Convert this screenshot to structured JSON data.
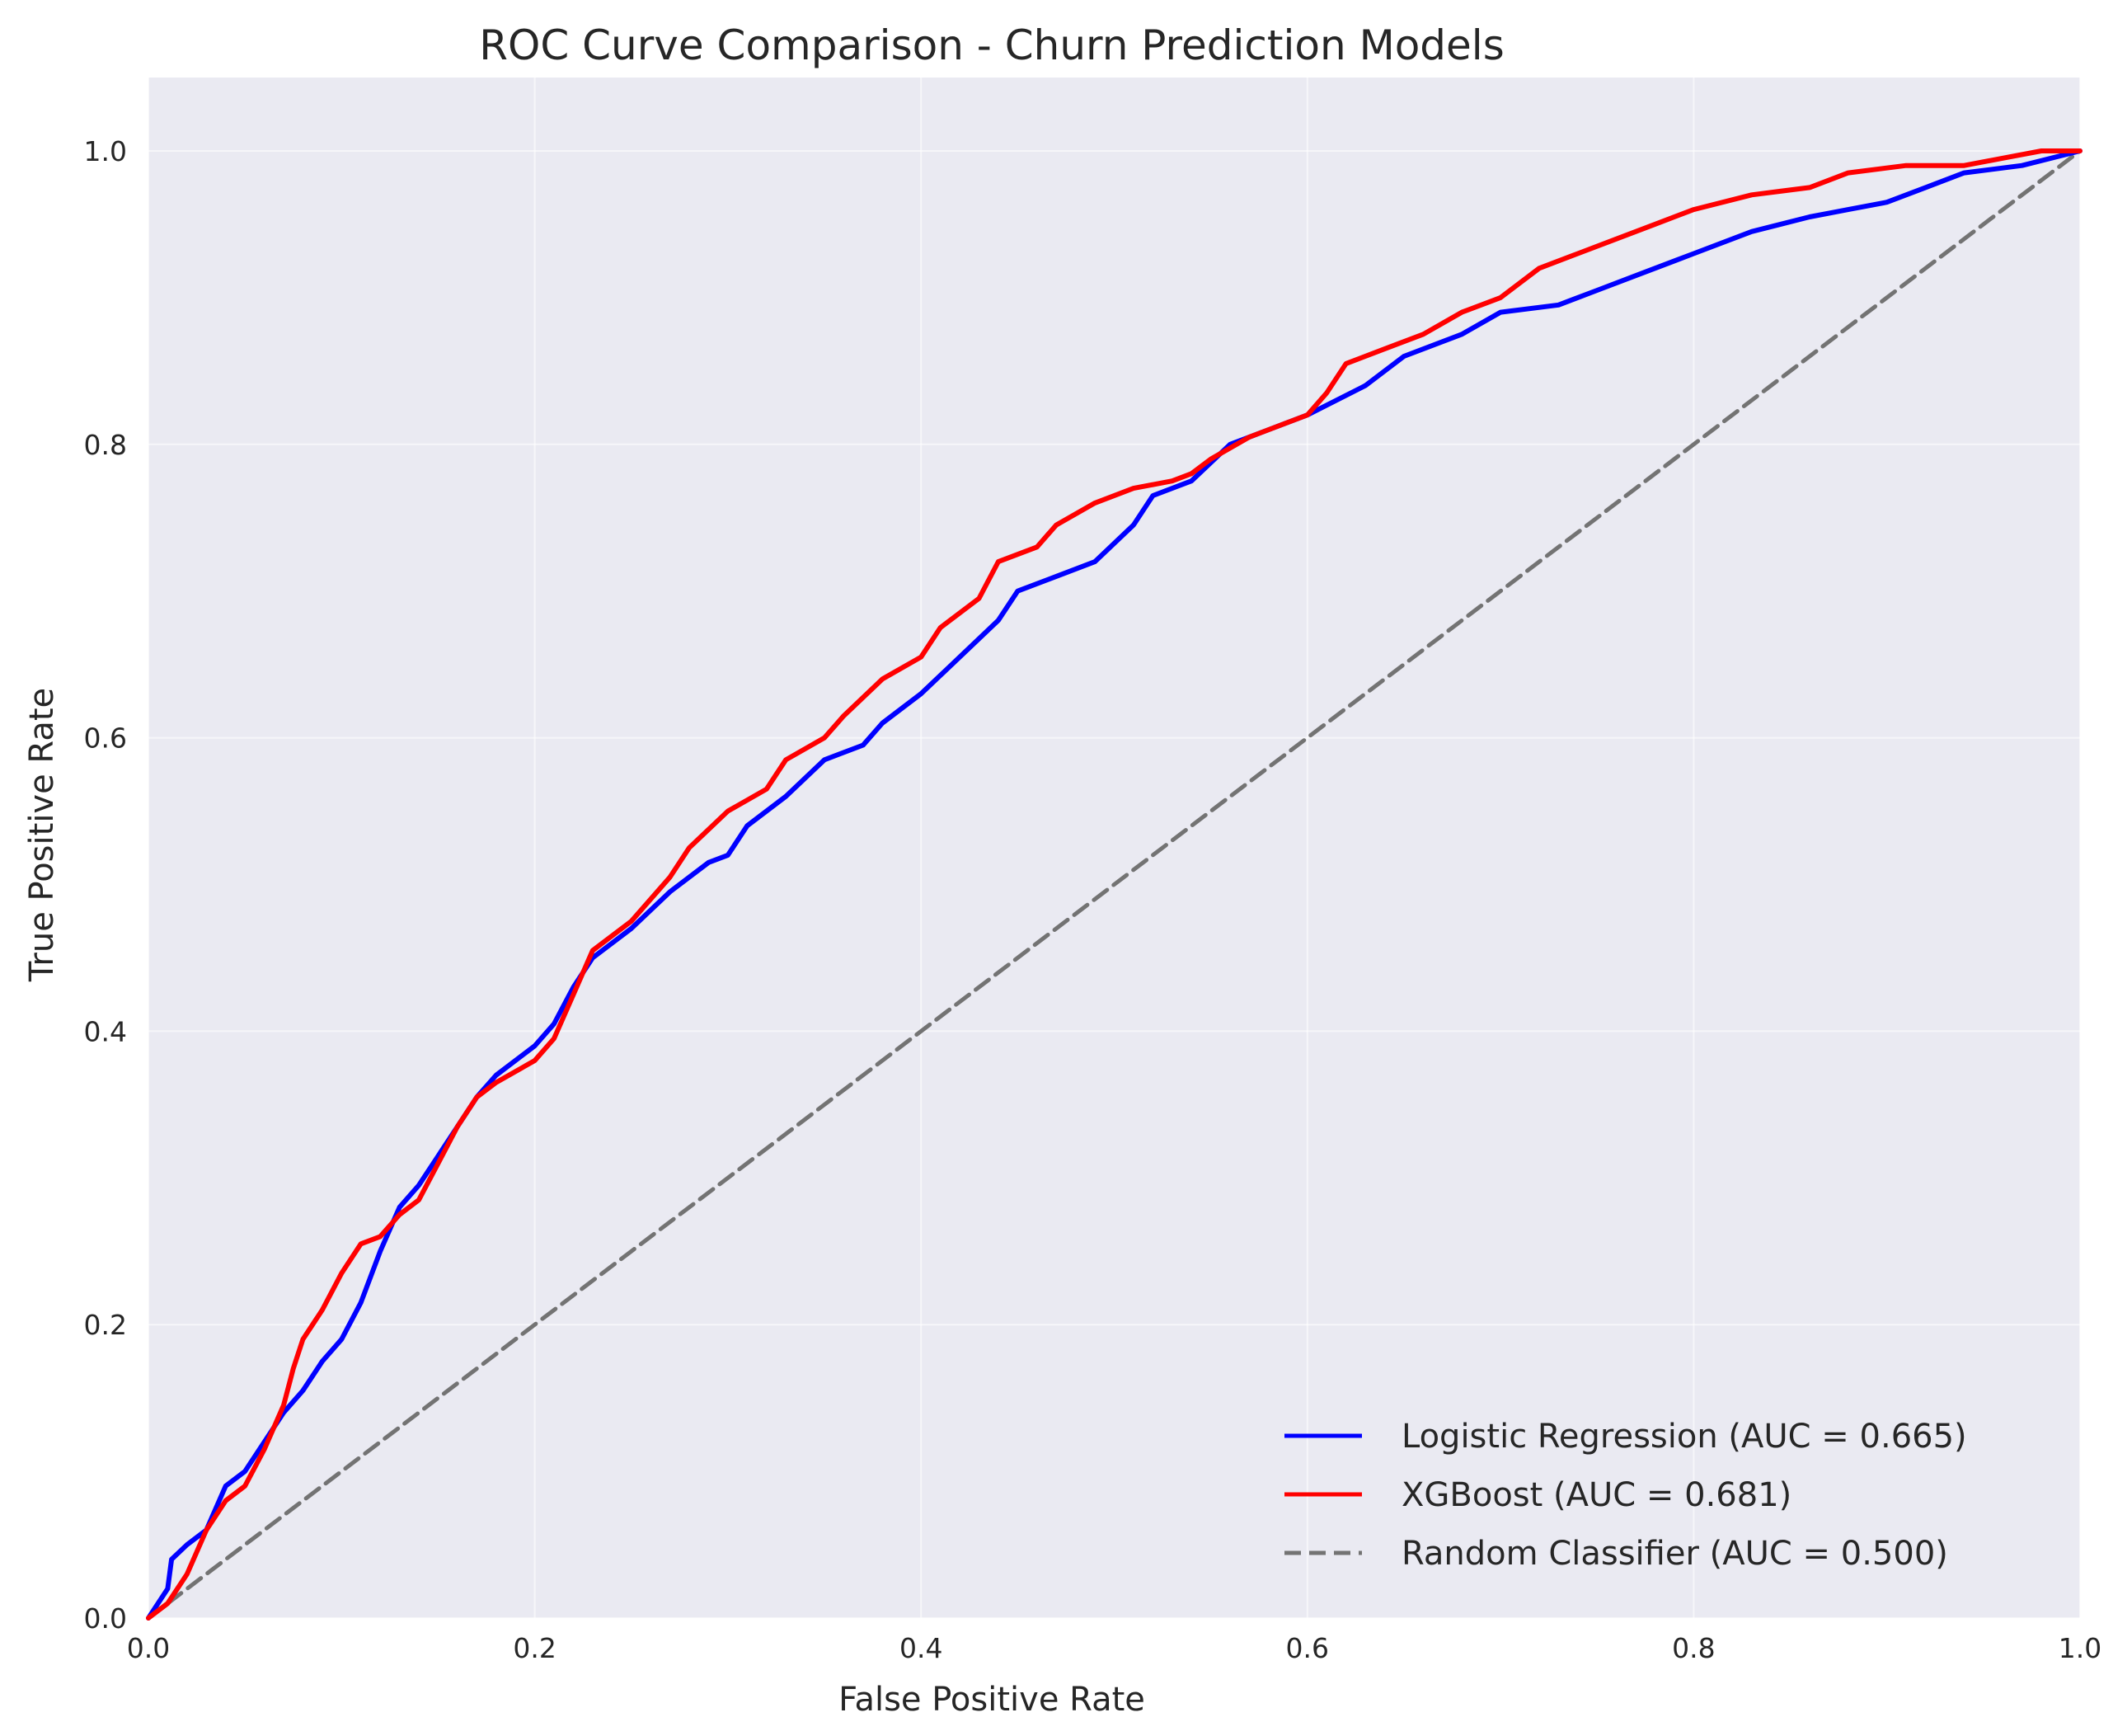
{
  "chart_data": {
    "type": "line",
    "title": "ROC Curve Comparison - Churn Prediction Models",
    "xlabel": "False Positive Rate",
    "ylabel": "True Positive Rate",
    "xlim": [
      0.0,
      1.0
    ],
    "ylim": [
      0.0,
      1.05
    ],
    "x_ticks": [
      "0.0",
      "0.2",
      "0.4",
      "0.6",
      "0.8",
      "1.0"
    ],
    "y_ticks": [
      "0.0",
      "0.2",
      "0.4",
      "0.6",
      "0.8",
      "1.0"
    ],
    "grid": true,
    "legend_position": "lower-right",
    "background_color": "#eaeaf2",
    "grid_color": "#ffffff",
    "series": [
      {
        "name": "Logistic Regression (AUC = 0.665)",
        "color": "#0000ff",
        "style": "solid",
        "points": [
          [
            0.0,
            0.0
          ],
          [
            0.01,
            0.02
          ],
          [
            0.012,
            0.04
          ],
          [
            0.02,
            0.05
          ],
          [
            0.03,
            0.06
          ],
          [
            0.04,
            0.09
          ],
          [
            0.05,
            0.1
          ],
          [
            0.06,
            0.12
          ],
          [
            0.07,
            0.14
          ],
          [
            0.08,
            0.155
          ],
          [
            0.09,
            0.175
          ],
          [
            0.1,
            0.19
          ],
          [
            0.11,
            0.215
          ],
          [
            0.12,
            0.25
          ],
          [
            0.13,
            0.28
          ],
          [
            0.14,
            0.295
          ],
          [
            0.15,
            0.315
          ],
          [
            0.16,
            0.335
          ],
          [
            0.17,
            0.355
          ],
          [
            0.18,
            0.37
          ],
          [
            0.2,
            0.39
          ],
          [
            0.21,
            0.405
          ],
          [
            0.22,
            0.43
          ],
          [
            0.23,
            0.45
          ],
          [
            0.25,
            0.47
          ],
          [
            0.27,
            0.495
          ],
          [
            0.29,
            0.515
          ],
          [
            0.3,
            0.52
          ],
          [
            0.31,
            0.54
          ],
          [
            0.33,
            0.56
          ],
          [
            0.35,
            0.585
          ],
          [
            0.37,
            0.595
          ],
          [
            0.38,
            0.61
          ],
          [
            0.4,
            0.63
          ],
          [
            0.42,
            0.655
          ],
          [
            0.44,
            0.68
          ],
          [
            0.45,
            0.7
          ],
          [
            0.47,
            0.71
          ],
          [
            0.49,
            0.72
          ],
          [
            0.51,
            0.745
          ],
          [
            0.52,
            0.765
          ],
          [
            0.54,
            0.775
          ],
          [
            0.56,
            0.8
          ],
          [
            0.58,
            0.81
          ],
          [
            0.6,
            0.82
          ],
          [
            0.63,
            0.84
          ],
          [
            0.65,
            0.86
          ],
          [
            0.68,
            0.875
          ],
          [
            0.7,
            0.89
          ],
          [
            0.73,
            0.895
          ],
          [
            0.75,
            0.905
          ],
          [
            0.77,
            0.915
          ],
          [
            0.8,
            0.93
          ],
          [
            0.83,
            0.945
          ],
          [
            0.86,
            0.955
          ],
          [
            0.88,
            0.96
          ],
          [
            0.9,
            0.965
          ],
          [
            0.92,
            0.975
          ],
          [
            0.94,
            0.985
          ],
          [
            0.97,
            0.99
          ],
          [
            1.0,
            1.0
          ]
        ]
      },
      {
        "name": "XGBoost (AUC = 0.681)",
        "color": "#ff0000",
        "style": "solid",
        "points": [
          [
            0.0,
            0.0
          ],
          [
            0.01,
            0.01
          ],
          [
            0.02,
            0.03
          ],
          [
            0.03,
            0.06
          ],
          [
            0.04,
            0.08
          ],
          [
            0.05,
            0.09
          ],
          [
            0.06,
            0.115
          ],
          [
            0.07,
            0.145
          ],
          [
            0.075,
            0.17
          ],
          [
            0.08,
            0.19
          ],
          [
            0.09,
            0.21
          ],
          [
            0.1,
            0.235
          ],
          [
            0.11,
            0.255
          ],
          [
            0.12,
            0.26
          ],
          [
            0.13,
            0.275
          ],
          [
            0.14,
            0.285
          ],
          [
            0.15,
            0.31
          ],
          [
            0.16,
            0.335
          ],
          [
            0.17,
            0.355
          ],
          [
            0.18,
            0.365
          ],
          [
            0.2,
            0.38
          ],
          [
            0.21,
            0.395
          ],
          [
            0.22,
            0.425
          ],
          [
            0.23,
            0.455
          ],
          [
            0.25,
            0.475
          ],
          [
            0.27,
            0.505
          ],
          [
            0.28,
            0.525
          ],
          [
            0.3,
            0.55
          ],
          [
            0.32,
            0.565
          ],
          [
            0.33,
            0.585
          ],
          [
            0.35,
            0.6
          ],
          [
            0.36,
            0.615
          ],
          [
            0.38,
            0.64
          ],
          [
            0.4,
            0.655
          ],
          [
            0.41,
            0.675
          ],
          [
            0.43,
            0.695
          ],
          [
            0.44,
            0.72
          ],
          [
            0.46,
            0.73
          ],
          [
            0.47,
            0.745
          ],
          [
            0.49,
            0.76
          ],
          [
            0.51,
            0.77
          ],
          [
            0.53,
            0.775
          ],
          [
            0.54,
            0.78
          ],
          [
            0.55,
            0.79
          ],
          [
            0.57,
            0.805
          ],
          [
            0.59,
            0.815
          ],
          [
            0.6,
            0.82
          ],
          [
            0.61,
            0.835
          ],
          [
            0.62,
            0.855
          ],
          [
            0.64,
            0.865
          ],
          [
            0.66,
            0.875
          ],
          [
            0.68,
            0.89
          ],
          [
            0.7,
            0.9
          ],
          [
            0.71,
            0.91
          ],
          [
            0.72,
            0.92
          ],
          [
            0.74,
            0.93
          ],
          [
            0.76,
            0.94
          ],
          [
            0.78,
            0.95
          ],
          [
            0.8,
            0.96
          ],
          [
            0.83,
            0.97
          ],
          [
            0.86,
            0.975
          ],
          [
            0.88,
            0.985
          ],
          [
            0.91,
            0.99
          ],
          [
            0.94,
            0.99
          ],
          [
            0.96,
            0.995
          ],
          [
            0.98,
            1.0
          ],
          [
            1.0,
            1.0
          ]
        ]
      },
      {
        "name": "Random Classifier (AUC = 0.500)",
        "color": "#737373",
        "style": "dashed",
        "points": [
          [
            0.0,
            0.0
          ],
          [
            1.0,
            1.0
          ]
        ]
      }
    ]
  }
}
